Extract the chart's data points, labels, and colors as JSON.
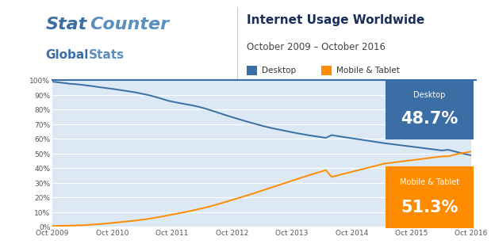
{
  "title": "Internet Usage Worldwide",
  "subtitle": "October 2009 – October 2016",
  "legend_desktop": "Desktop",
  "legend_mobile": "Mobile & Tablet",
  "desktop_label": "Desktop",
  "desktop_value": "48.7%",
  "mobile_label": "Mobile & Tablet",
  "mobile_value": "51.3%",
  "desktop_color": "#3a6ea5",
  "mobile_color": "#FF8C00",
  "desktop_box_color": "#3a6ea5",
  "mobile_box_color": "#FF8C00",
  "plot_bg_color": "#dce9f5",
  "header_bg_color": "#ffffff",
  "grid_color": "#ffffff",
  "title_color": "#1a2e5a",
  "subtitle_color": "#555555",
  "ytick_labels": [
    "0%",
    "10%",
    "20%",
    "30%",
    "40%",
    "50%",
    "60%",
    "70%",
    "80%",
    "90%",
    "100%"
  ],
  "xtick_labels": [
    "Oct 2009",
    "Oct 2010",
    "Oct 2011",
    "Oct 2012",
    "Oct 2013",
    "Oct 2014",
    "Oct 2015",
    "Oct 2016"
  ],
  "desktop_data": [
    98.9,
    98.5,
    98.0,
    97.5,
    97.2,
    96.8,
    96.3,
    95.8,
    95.2,
    94.7,
    94.2,
    93.6,
    93.0,
    92.4,
    91.8,
    91.0,
    90.2,
    89.3,
    88.2,
    87.0,
    85.8,
    85.0,
    84.2,
    83.5,
    82.8,
    81.9,
    80.9,
    79.7,
    78.4,
    77.1,
    75.8,
    74.6,
    73.4,
    72.2,
    71.1,
    70.0,
    68.9,
    67.9,
    67.0,
    66.2,
    65.4,
    64.6,
    63.8,
    63.1,
    62.4,
    61.8,
    61.2,
    60.6,
    62.5,
    61.8,
    61.2,
    60.6,
    60.0,
    59.4,
    58.8,
    58.2,
    57.6,
    57.0,
    56.5,
    56.0,
    55.5,
    55.0,
    54.5,
    54.0,
    53.5,
    53.0,
    52.5,
    52.0,
    52.5,
    51.5,
    50.5,
    49.5,
    48.7
  ],
  "mobile_data": [
    0.5,
    0.6,
    0.7,
    0.8,
    0.9,
    1.0,
    1.2,
    1.5,
    1.8,
    2.1,
    2.5,
    2.9,
    3.3,
    3.7,
    4.1,
    4.6,
    5.1,
    5.7,
    6.4,
    7.1,
    7.9,
    8.6,
    9.4,
    10.2,
    11.0,
    11.9,
    12.8,
    13.8,
    14.9,
    16.0,
    17.2,
    18.4,
    19.6,
    20.8,
    22.0,
    23.3,
    24.6,
    25.9,
    27.2,
    28.5,
    29.8,
    31.1,
    32.4,
    33.7,
    35.0,
    36.2,
    37.4,
    38.6,
    34.0,
    35.0,
    36.0,
    37.0,
    38.0,
    39.0,
    40.0,
    41.0,
    42.0,
    43.0,
    43.5,
    44.0,
    44.5,
    45.0,
    45.5,
    46.0,
    46.5,
    47.0,
    47.5,
    48.0,
    48.0,
    49.0,
    50.0,
    50.5,
    51.3
  ]
}
